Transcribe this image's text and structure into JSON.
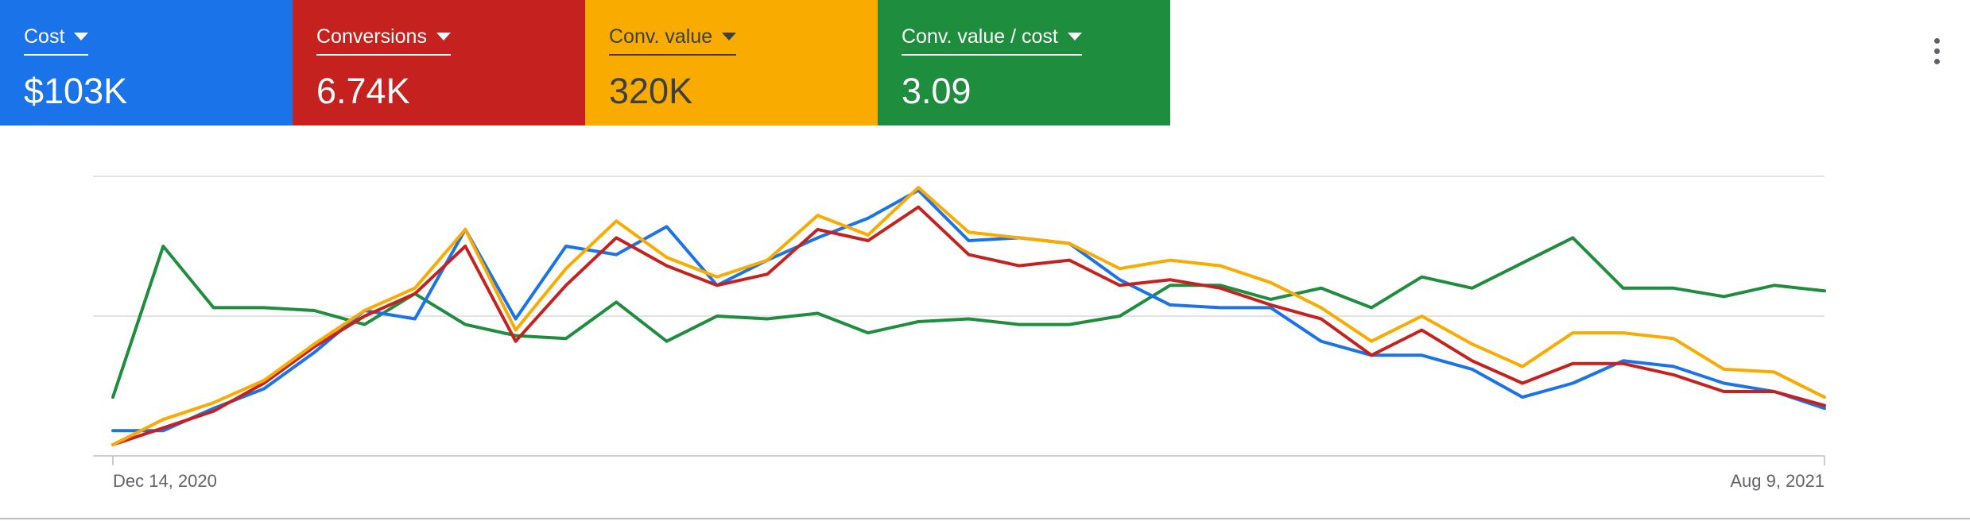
{
  "metrics": [
    {
      "label": "Cost",
      "value": "$103K",
      "color": "#1a73e8"
    },
    {
      "label": "Conversions",
      "value": "6.74K",
      "color": "#c5221f"
    },
    {
      "label": "Conv. value",
      "value": "320K",
      "color": "#f9ab00"
    },
    {
      "label": "Conv. value / cost",
      "value": "3.09",
      "color": "#1e8e3e"
    }
  ],
  "menu": {
    "icon": "more-vert-icon"
  },
  "chart_data": {
    "type": "line",
    "title": "",
    "xlabel": "",
    "ylabel": "",
    "x_tick_labels": [
      "Dec 14, 2020",
      "Aug 9, 2021"
    ],
    "x": [
      "Dec 14, 2020",
      "Dec 21, 2020",
      "Dec 28, 2020",
      "Jan 4, 2021",
      "Jan 11, 2021",
      "Jan 18, 2021",
      "Jan 25, 2021",
      "Feb 1, 2021",
      "Feb 8, 2021",
      "Feb 15, 2021",
      "Feb 22, 2021",
      "Mar 1, 2021",
      "Mar 8, 2021",
      "Mar 15, 2021",
      "Mar 22, 2021",
      "Mar 29, 2021",
      "Apr 5, 2021",
      "Apr 12, 2021",
      "Apr 19, 2021",
      "Apr 26, 2021",
      "May 3, 2021",
      "May 10, 2021",
      "May 17, 2021",
      "May 24, 2021",
      "May 31, 2021",
      "Jun 7, 2021",
      "Jun 14, 2021",
      "Jun 21, 2021",
      "Jun 28, 2021",
      "Jul 5, 2021",
      "Jul 12, 2021",
      "Jul 19, 2021",
      "Jul 26, 2021",
      "Aug 2, 2021",
      "Aug 9, 2021"
    ],
    "gridlines": true,
    "y_axis_labels_shown": false,
    "legend": "metric cards above chart",
    "series": [
      {
        "color": "#1a73e8",
        "values": [
          0.09,
          0.09,
          0.17,
          0.24,
          0.37,
          0.52,
          0.49,
          0.81,
          0.49,
          0.75,
          0.72,
          0.82,
          0.61,
          0.7,
          0.78,
          0.85,
          0.95,
          0.77,
          0.78,
          0.76,
          0.63,
          0.54,
          0.53,
          0.53,
          0.41,
          0.36,
          0.36,
          0.31,
          0.21,
          0.26,
          0.34,
          0.32,
          0.26,
          0.23,
          0.17
        ]
      },
      {
        "color": "#c5221f",
        "values": [
          0.04,
          0.1,
          0.16,
          0.26,
          0.39,
          0.5,
          0.58,
          0.75,
          0.41,
          0.61,
          0.78,
          0.68,
          0.61,
          0.65,
          0.81,
          0.77,
          0.89,
          0.72,
          0.68,
          0.7,
          0.61,
          0.63,
          0.6,
          0.54,
          0.49,
          0.36,
          0.45,
          0.34,
          0.26,
          0.33,
          0.33,
          0.29,
          0.23,
          0.23,
          0.18
        ]
      },
      {
        "color": "#f9ab00",
        "values": [
          0.04,
          0.13,
          0.19,
          0.27,
          0.4,
          0.52,
          0.6,
          0.81,
          0.45,
          0.67,
          0.84,
          0.71,
          0.64,
          0.7,
          0.86,
          0.79,
          0.96,
          0.8,
          0.78,
          0.76,
          0.67,
          0.7,
          0.68,
          0.62,
          0.53,
          0.41,
          0.5,
          0.4,
          0.32,
          0.44,
          0.44,
          0.42,
          0.31,
          0.3,
          0.21
        ]
      },
      {
        "color": "#1e8e3e",
        "values": [
          0.21,
          0.75,
          0.53,
          0.53,
          0.52,
          0.47,
          0.58,
          0.47,
          0.43,
          0.42,
          0.55,
          0.41,
          0.5,
          0.49,
          0.51,
          0.44,
          0.48,
          0.49,
          0.47,
          0.47,
          0.5,
          0.61,
          0.61,
          0.56,
          0.6,
          0.53,
          0.64,
          0.6,
          0.69,
          0.78,
          0.6,
          0.6,
          0.57,
          0.61,
          0.59
        ]
      }
    ]
  }
}
